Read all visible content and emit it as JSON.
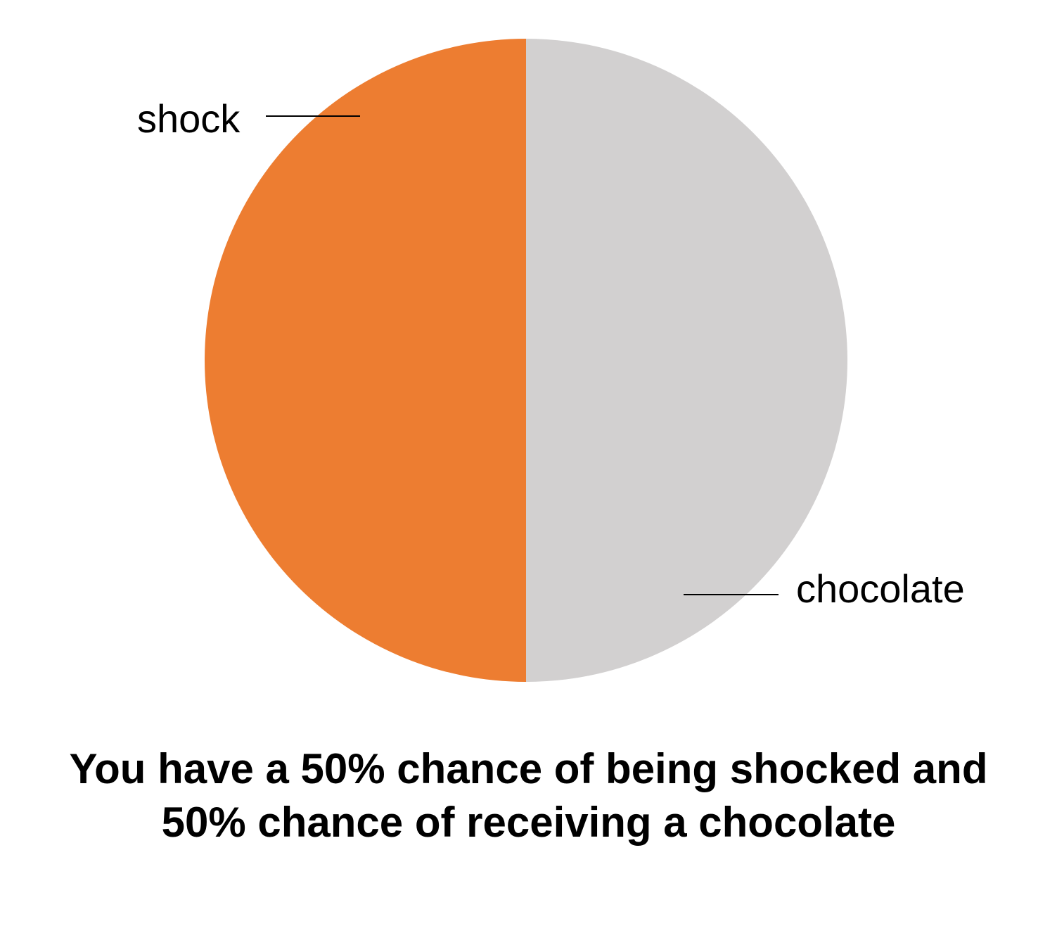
{
  "chart_data": {
    "type": "pie",
    "slices": [
      {
        "label": "shock",
        "value": 50,
        "color": "#ED7D31"
      },
      {
        "label": "chocolate",
        "value": 50,
        "color": "#D2D0D0"
      }
    ],
    "legend": "none",
    "caption_lines": [
      "You have a 50% chance of being shocked and",
      "50% chance of receiving a chocolate"
    ]
  }
}
